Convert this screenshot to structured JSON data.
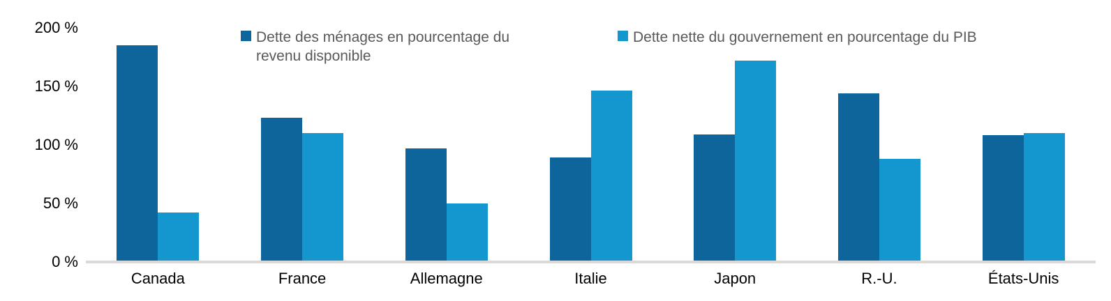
{
  "chart_data": {
    "type": "bar",
    "title": "",
    "xlabel": "",
    "ylabel": "",
    "categories": [
      "Canada",
      "France",
      "Allemagne",
      "Italie",
      "Japon",
      "R.-U.",
      "États-Unis"
    ],
    "series": [
      {
        "name": "Dette des ménages en pourcentage du revenu disponible",
        "color": "#0d659b",
        "values": [
          184,
          122,
          96,
          88,
          108,
          143,
          107
        ]
      },
      {
        "name": "Dette nette du gouvernement en pourcentage du PIB",
        "color": "#1496cf",
        "values": [
          41,
          109,
          49,
          145,
          171,
          87,
          109
        ]
      }
    ],
    "ylim": [
      0,
      200
    ],
    "ytick_values": [
      0,
      50,
      100,
      150,
      200
    ],
    "ytick_labels": [
      "0 %",
      "50 %",
      "100 %",
      "150 %",
      "200 %"
    ],
    "grid": false,
    "legend_position": "top",
    "colors": {
      "axis_line": "#d9d9d9",
      "tick_label": "#000000",
      "legend_text": "#595959",
      "background": "#ffffff"
    }
  }
}
